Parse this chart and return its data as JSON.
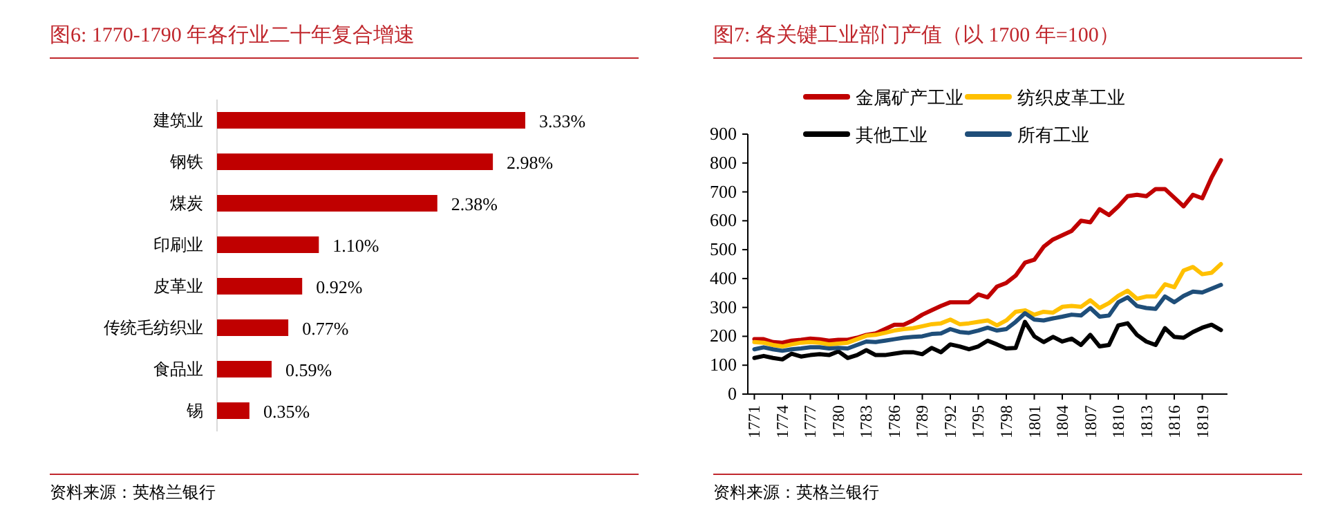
{
  "chart_data": [
    {
      "type": "bar",
      "orientation": "horizontal",
      "title": "图6:  1770-1790 年各行业二十年复合增速",
      "categories": [
        "建筑业",
        "钢铁",
        "煤炭",
        "印刷业",
        "皮革业",
        "传统毛纺织业",
        "食品业",
        "锡"
      ],
      "values": [
        3.33,
        2.98,
        2.38,
        1.1,
        0.92,
        0.77,
        0.59,
        0.35
      ],
      "value_labels": [
        "3.33%",
        "2.98%",
        "2.38%",
        "1.10%",
        "0.92%",
        "0.77%",
        "0.59%",
        "0.35%"
      ],
      "color": "#c00000",
      "legend": false,
      "grid": false,
      "annotations": [
        "资料来源：英格兰银行"
      ]
    },
    {
      "type": "line",
      "title": "图7:  各关键工业部门产值（以 1700 年=100）",
      "x": [
        1771,
        1772,
        1773,
        1774,
        1775,
        1776,
        1777,
        1778,
        1779,
        1780,
        1781,
        1782,
        1783,
        1784,
        1785,
        1786,
        1787,
        1788,
        1789,
        1790,
        1791,
        1792,
        1793,
        1794,
        1795,
        1796,
        1797,
        1798,
        1799,
        1800,
        1801,
        1802,
        1803,
        1804,
        1805,
        1806,
        1807,
        1808,
        1809,
        1810,
        1811,
        1812,
        1813,
        1814,
        1815,
        1816,
        1817,
        1818,
        1819,
        1820,
        1821
      ],
      "series": [
        {
          "name": "金属矿产工业",
          "color": "#c00000",
          "values": [
            190,
            190,
            180,
            178,
            185,
            188,
            192,
            190,
            185,
            188,
            188,
            195,
            205,
            210,
            225,
            240,
            240,
            255,
            275,
            290,
            305,
            318,
            318,
            318,
            345,
            335,
            372,
            385,
            410,
            455,
            465,
            510,
            535,
            550,
            565,
            600,
            595,
            640,
            620,
            650,
            685,
            690,
            685,
            710,
            710,
            680,
            650,
            690,
            678,
            750,
            810
          ]
        },
        {
          "name": "纺织皮革工业",
          "color": "#ffc000",
          "values": [
            180,
            178,
            170,
            165,
            172,
            178,
            180,
            178,
            172,
            175,
            178,
            190,
            202,
            205,
            212,
            220,
            225,
            228,
            235,
            242,
            245,
            258,
            242,
            245,
            250,
            255,
            238,
            255,
            285,
            290,
            275,
            285,
            282,
            302,
            305,
            302,
            325,
            298,
            315,
            340,
            358,
            330,
            338,
            338,
            380,
            370,
            428,
            440,
            415,
            420,
            450
          ]
        },
        {
          "name": "其他工业",
          "color": "#000000",
          "values": [
            125,
            132,
            125,
            120,
            140,
            130,
            135,
            138,
            135,
            148,
            125,
            135,
            152,
            135,
            135,
            140,
            145,
            145,
            138,
            160,
            145,
            172,
            165,
            155,
            165,
            185,
            172,
            158,
            160,
            250,
            200,
            180,
            198,
            182,
            192,
            170,
            205,
            165,
            170,
            238,
            245,
            205,
            182,
            170,
            228,
            198,
            195,
            215,
            230,
            240,
            222
          ]
        },
        {
          "name": "所有工业",
          "color": "#1f4e79",
          "values": [
            155,
            162,
            155,
            150,
            155,
            158,
            162,
            162,
            158,
            160,
            158,
            170,
            182,
            180,
            185,
            190,
            195,
            198,
            200,
            208,
            210,
            225,
            215,
            212,
            220,
            230,
            220,
            225,
            250,
            280,
            258,
            255,
            262,
            268,
            275,
            272,
            298,
            268,
            272,
            318,
            335,
            305,
            298,
            295,
            338,
            318,
            340,
            355,
            352,
            365,
            378
          ]
        }
      ],
      "xlim": [
        1770.3,
        1821.7
      ],
      "xticks": [
        1771,
        1774,
        1777,
        1780,
        1783,
        1786,
        1789,
        1792,
        1795,
        1798,
        1801,
        1804,
        1807,
        1810,
        1813,
        1816,
        1819
      ],
      "ylim": [
        0,
        900
      ],
      "yticks": [
        0,
        100,
        200,
        300,
        400,
        500,
        600,
        700,
        800,
        900
      ],
      "legend": "top",
      "grid": false,
      "marker": "none",
      "line_style": "solid",
      "annotations": [
        "资料来源：英格兰银行"
      ]
    }
  ]
}
